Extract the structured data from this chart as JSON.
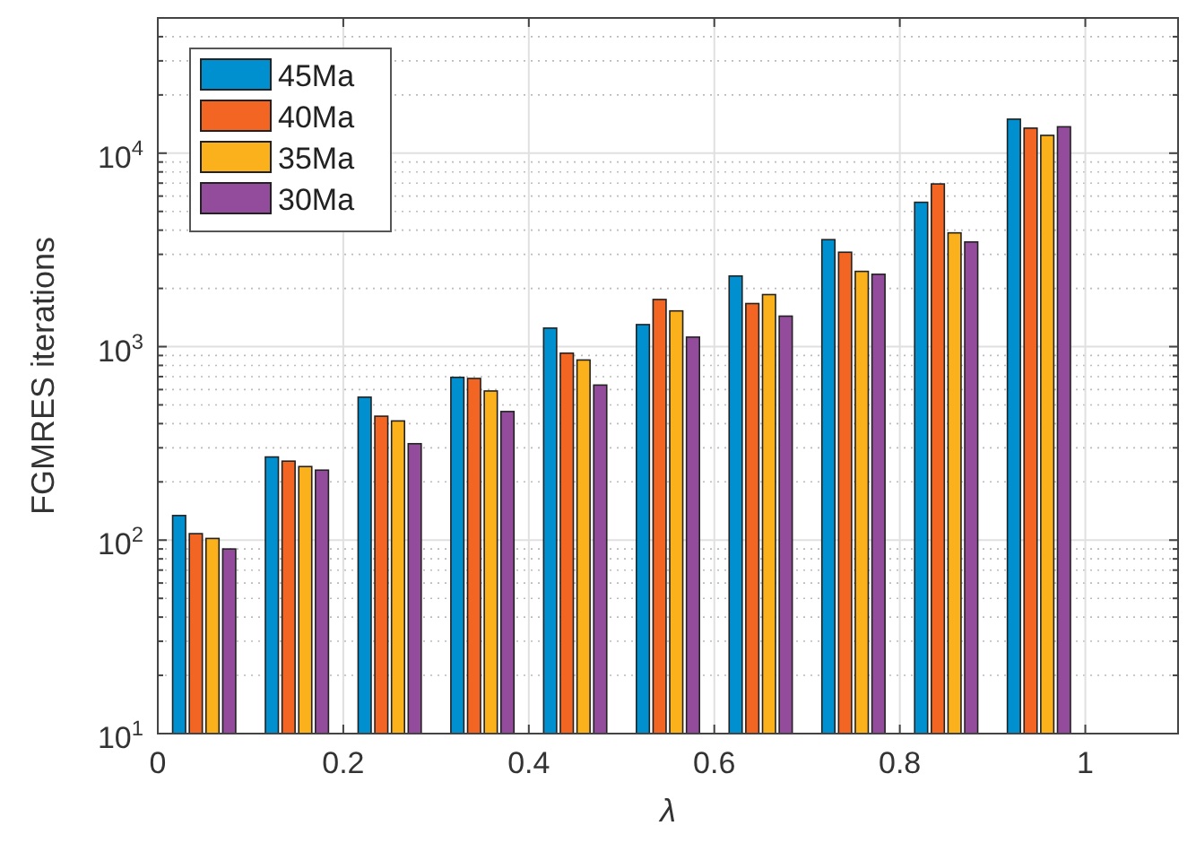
{
  "chart_data": {
    "type": "bar",
    "xlabel": "λ",
    "ylabel": "FGMRES iterations",
    "x": [
      0.05,
      0.15,
      0.25,
      0.35,
      0.45,
      0.55,
      0.65,
      0.75,
      0.85,
      0.95
    ],
    "series": [
      {
        "name": "45Ma",
        "color": "#0090cf",
        "values": [
          134,
          269,
          548,
          694,
          1247,
          1300,
          2318,
          3573,
          5573,
          14990
        ]
      },
      {
        "name": "40Ma",
        "color": "#f26522",
        "values": [
          108,
          256,
          437,
          685,
          925,
          1753,
          1670,
          3076,
          6934,
          13470
        ]
      },
      {
        "name": "35Ma",
        "color": "#fbb11b",
        "values": [
          102,
          240,
          413,
          590,
          853,
          1530,
          1858,
          2449,
          3873,
          12360
        ]
      },
      {
        "name": "30Ma",
        "color": "#924c9b",
        "values": [
          90,
          230,
          315,
          462,
          633,
          1120,
          1438,
          2366,
          3475,
          13690
        ]
      }
    ],
    "xlim": [
      0,
      1.1
    ],
    "xticks": [
      0,
      0.2,
      0.4,
      0.6,
      0.8,
      1
    ],
    "ylim": [
      10,
      50000
    ],
    "yticks": [
      {
        "value": 10,
        "label": "10$^{1}$"
      },
      {
        "value": 100,
        "label": "10$^{2}$"
      },
      {
        "value": 1000,
        "label": "10$^{3}$"
      },
      {
        "value": 10000,
        "label": "10$^{4}$"
      }
    ],
    "log": true,
    "grid": true,
    "legend": "top left"
  }
}
